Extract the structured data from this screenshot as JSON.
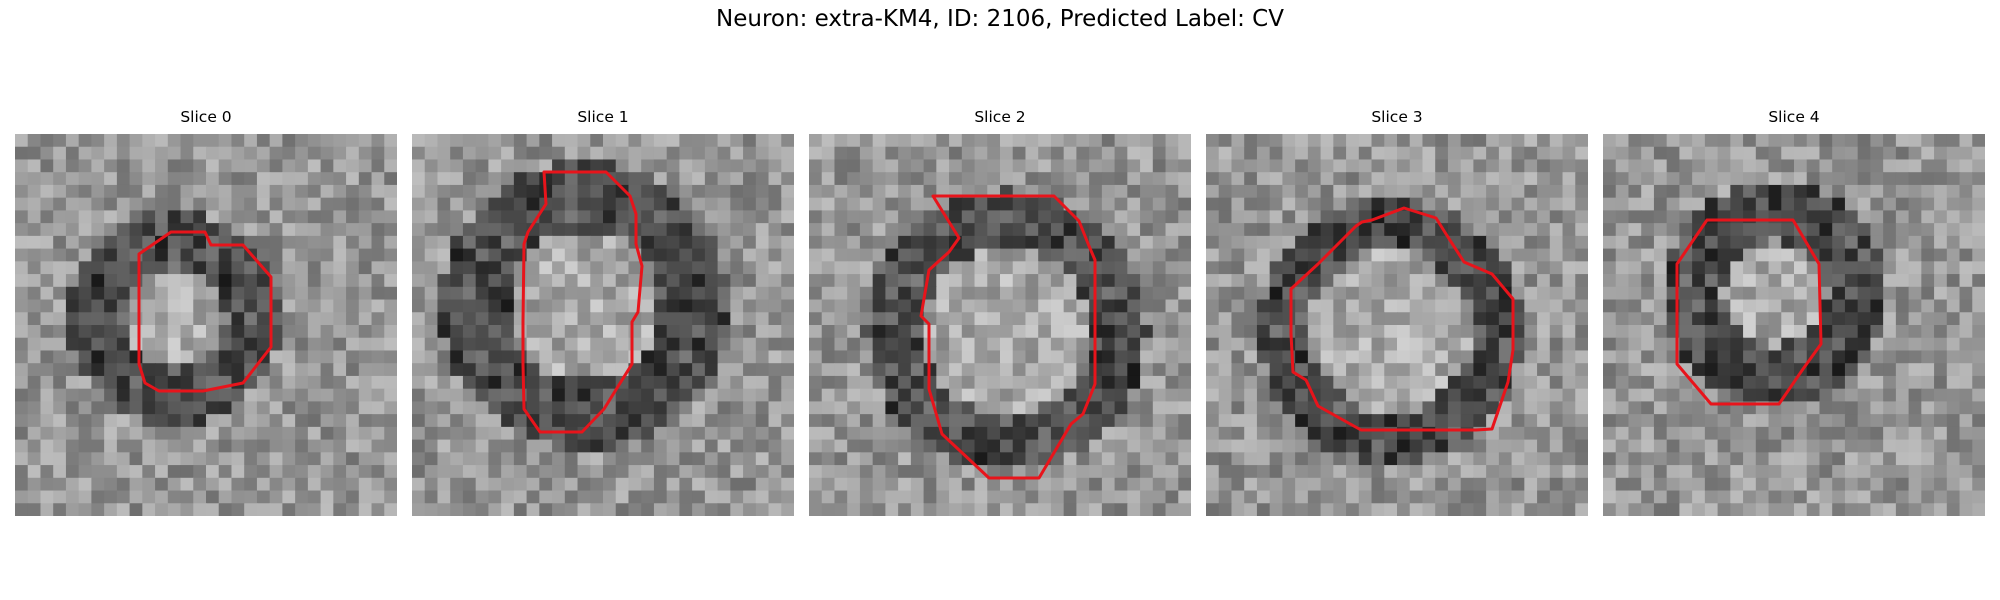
{
  "figure": {
    "title": "Neuron: extra-KM4, ID: 2106, Predicted Label: CV",
    "outline_color": "#e8141b",
    "colormap": "grayscale",
    "grid_size": 30,
    "slices": [
      {
        "label": "Slice 0",
        "seed": 11
      },
      {
        "label": "Slice 1",
        "seed": 23
      },
      {
        "label": "Slice 2",
        "seed": 37
      },
      {
        "label": "Slice 3",
        "seed": 51
      },
      {
        "label": "Slice 4",
        "seed": 67
      }
    ]
  }
}
